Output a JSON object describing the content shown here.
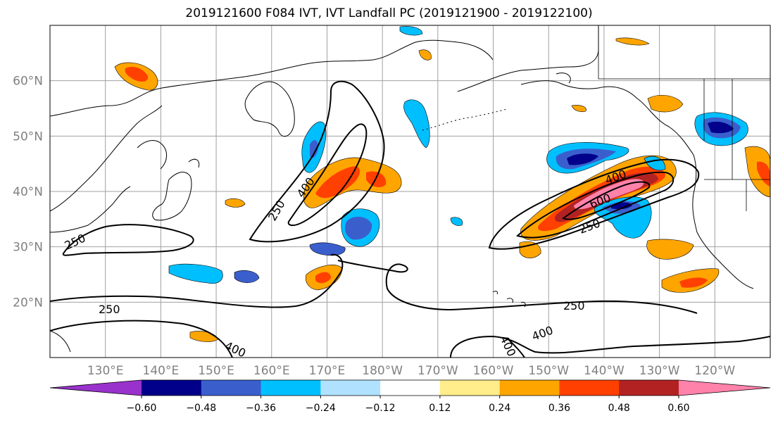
{
  "title": "2019121600 F084 IVT, IVT Landfall PC (2019121900 - 2019122100)",
  "map": {
    "lat_labels": [
      "60°N",
      "50°N",
      "40°N",
      "30°N",
      "20°N"
    ],
    "lat_values": [
      60,
      50,
      40,
      30,
      20
    ],
    "lon_labels": [
      "130°E",
      "140°E",
      "150°E",
      "160°E",
      "170°E",
      "180°W",
      "170°W",
      "160°W",
      "150°W",
      "140°W",
      "130°W",
      "120°W"
    ],
    "lon_values": [
      130,
      140,
      150,
      160,
      170,
      180,
      190,
      200,
      210,
      220,
      230,
      240
    ],
    "lon_range": [
      120,
      250
    ],
    "lat_range": [
      10,
      70
    ],
    "grid": true,
    "contour_labels": [
      "250",
      "400",
      "250",
      "250",
      "250",
      "400",
      "600",
      "250",
      "400",
      "400",
      "400"
    ],
    "contour_line_color": "#000000",
    "coastline_color": "#000000",
    "gridline_color": "#a0a0a0"
  },
  "colorbar": {
    "ticks": [
      "−0.60",
      "−0.48",
      "−0.36",
      "−0.24",
      "−0.12",
      "0.12",
      "0.24",
      "0.36",
      "0.48",
      "0.60"
    ],
    "tick_values": [
      -0.6,
      -0.48,
      -0.36,
      -0.24,
      -0.12,
      0.12,
      0.24,
      0.36,
      0.48,
      0.6
    ],
    "colors": [
      "#9932CC",
      "#00008B",
      "#3A5FCD",
      "#00BFFF",
      "#B0E2FF",
      "#FFFFFF",
      "#FFEC8B",
      "#FFA500",
      "#FF4000",
      "#B22222",
      "#FF82AB"
    ],
    "extend": "both"
  },
  "chart_data": {
    "type": "heatmap",
    "title": "2019121600 F084 IVT, IVT Landfall PC (2019121900 - 2019122100)",
    "xlabel": "",
    "ylabel": "",
    "x_ticks": [
      "130°E",
      "140°E",
      "150°E",
      "160°E",
      "170°E",
      "180°W",
      "170°W",
      "160°W",
      "150°W",
      "140°W",
      "130°W",
      "120°W"
    ],
    "y_ticks": [
      "60°N",
      "50°N",
      "40°N",
      "30°N",
      "20°N"
    ],
    "colorbar_levels": [
      -0.6,
      -0.48,
      -0.36,
      -0.24,
      -0.12,
      0.12,
      0.24,
      0.36,
      0.48,
      0.6
    ],
    "ivt_contour_levels": [
      250,
      400,
      600
    ],
    "grid": true
  }
}
